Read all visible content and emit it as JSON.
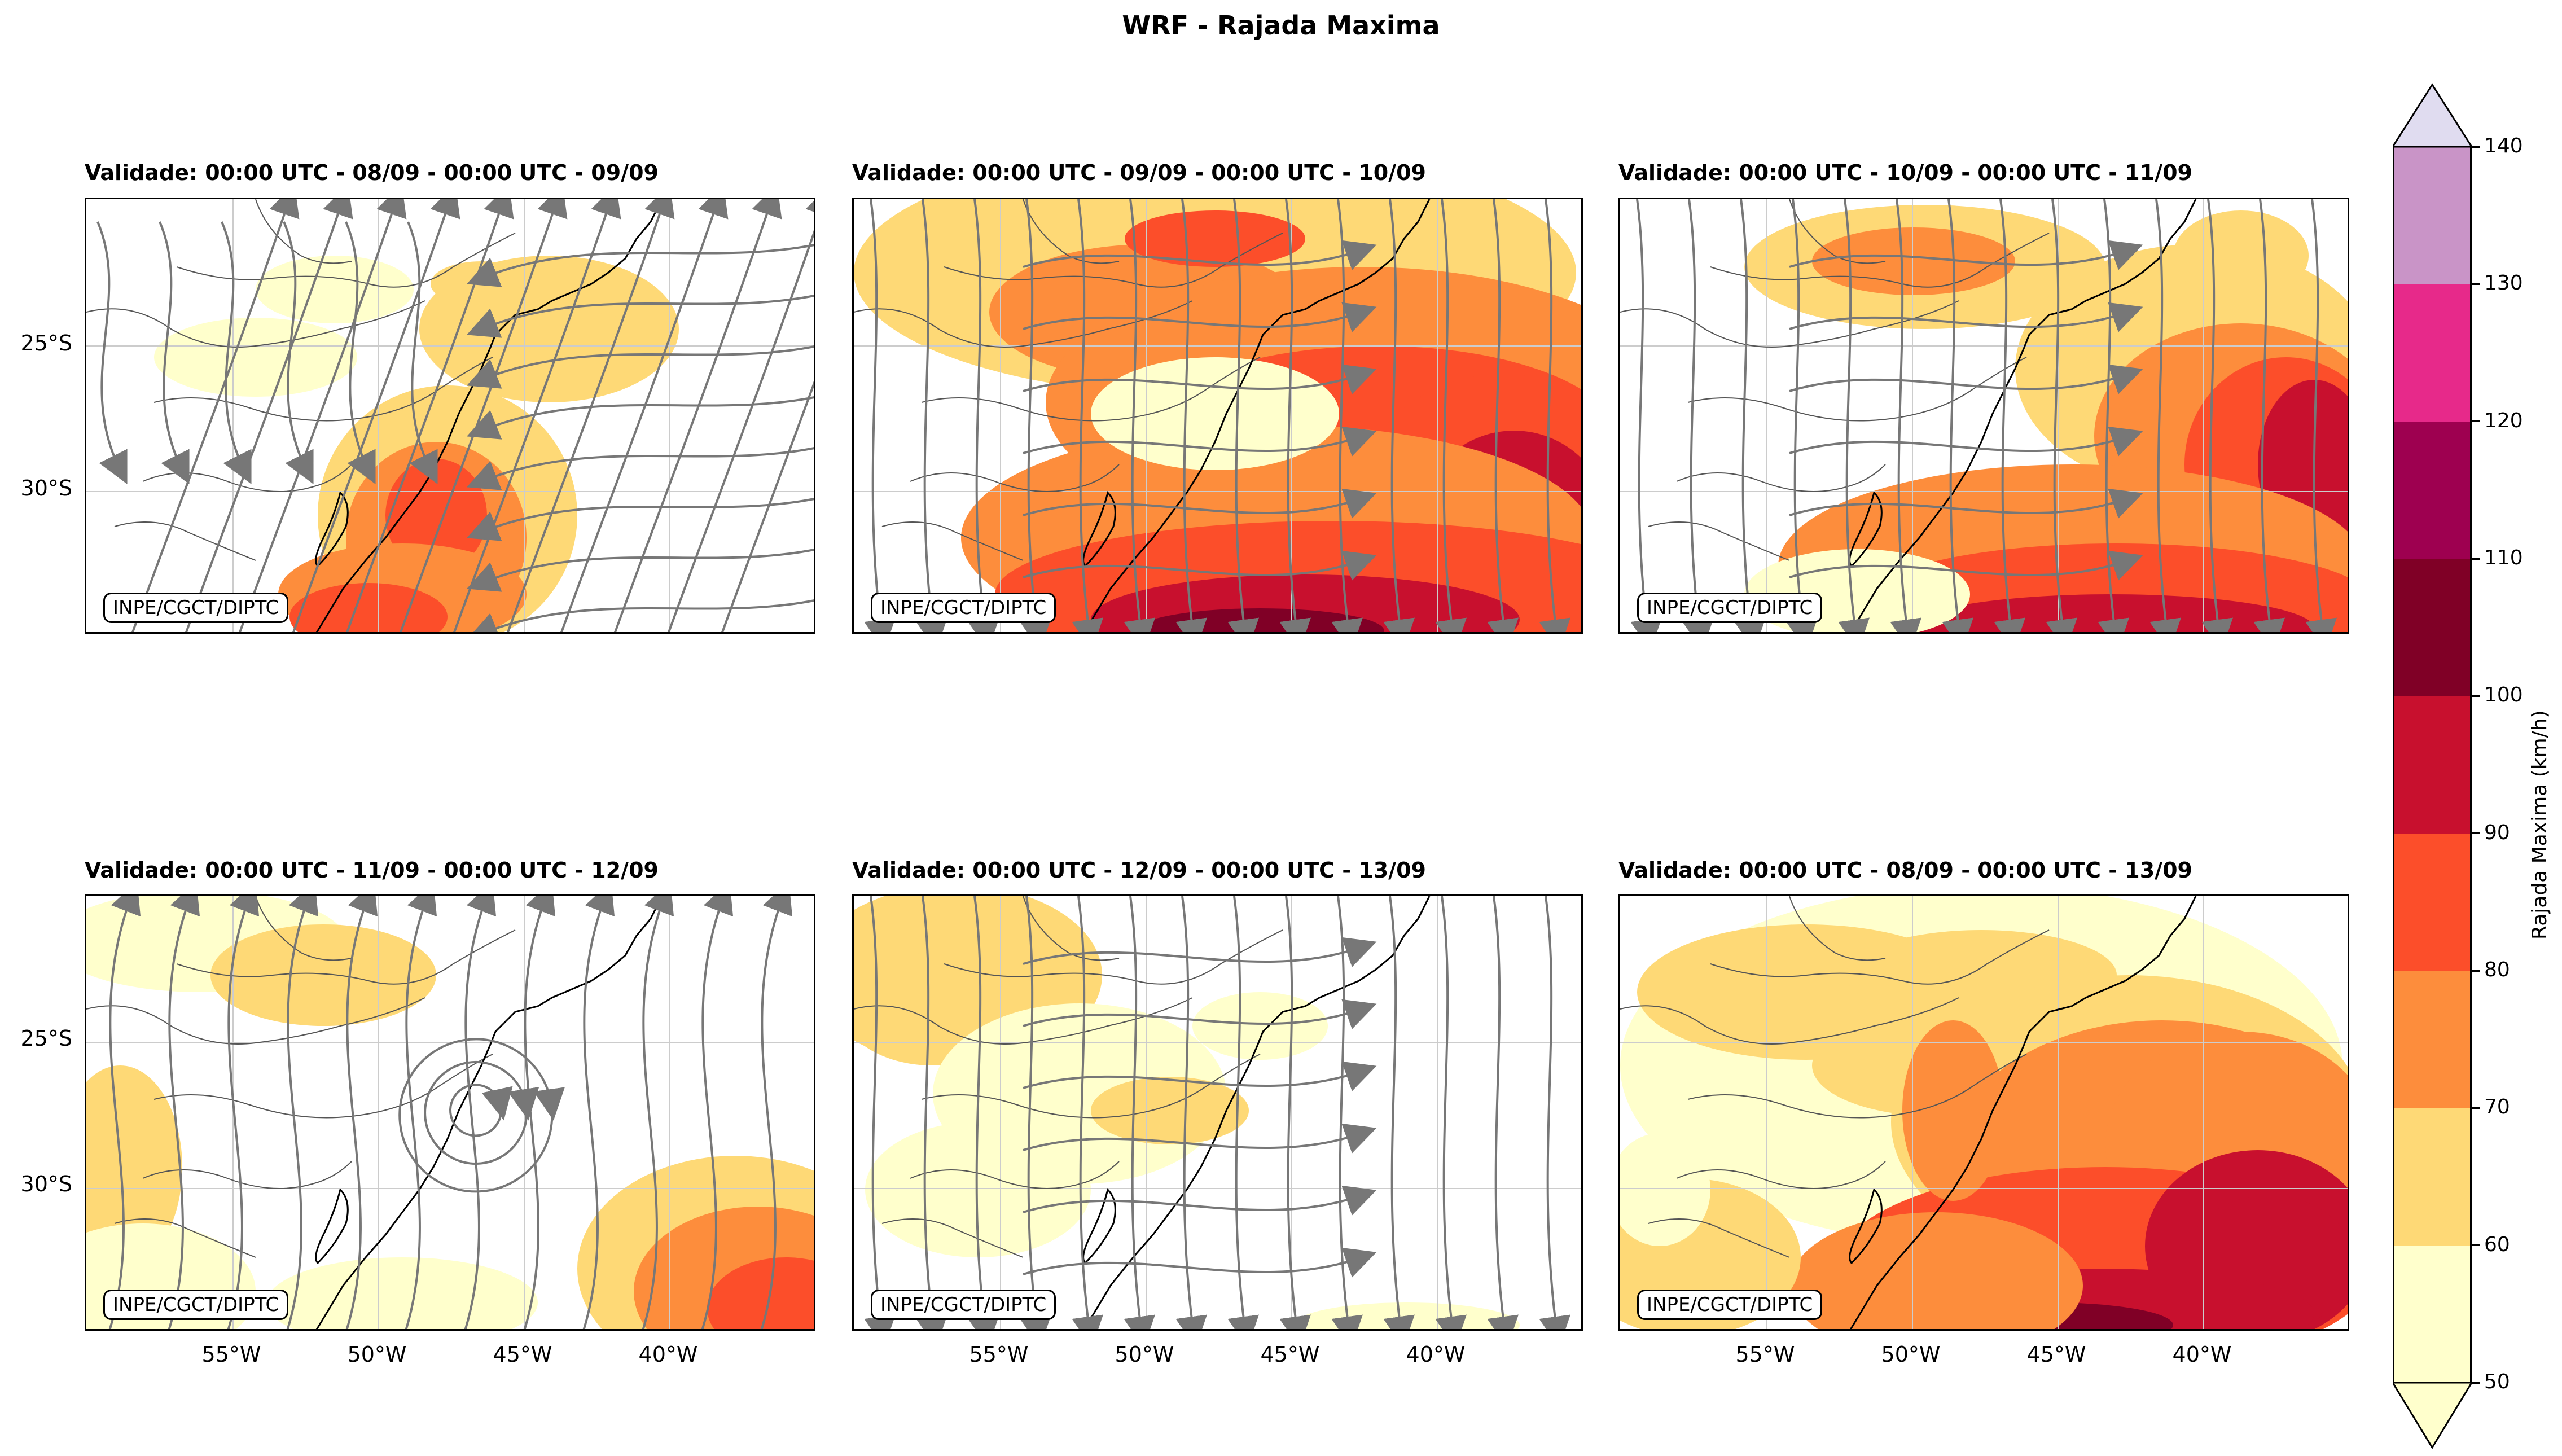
{
  "title": "WRF - Rajada Maxima",
  "credit": "INPE/CGCT/DIPTC",
  "panels": [
    {
      "title": "Validade: 00:00 UTC - 08/09 - 00:00 UTC - 09/09"
    },
    {
      "title": "Validade: 00:00 UTC - 09/09 - 00:00 UTC - 10/09"
    },
    {
      "title": "Validade: 00:00 UTC - 10/09 - 00:00 UTC - 11/09"
    },
    {
      "title": "Validade: 00:00 UTC - 11/09 - 00:00 UTC - 12/09"
    },
    {
      "title": "Validade: 00:00 UTC - 12/09 - 00:00 UTC - 13/09"
    },
    {
      "title": "Validade: 00:00 UTC - 08/09 - 00:00 UTC - 13/09"
    }
  ],
  "lat_labels": [
    "25°S",
    "30°S"
  ],
  "lon_labels": [
    "55°W",
    "50°W",
    "45°W",
    "40°W"
  ],
  "colorbar": {
    "label": "Rajada Maxima (km/h)",
    "ticks": [
      "50",
      "60",
      "70",
      "80",
      "90",
      "100",
      "110",
      "120",
      "130",
      "140"
    ],
    "colors": [
      "#ffffcc",
      "#fed976",
      "#fd8d3c",
      "#fc4e2a",
      "#c8102e",
      "#800026",
      "#9e0050",
      "#e7298a",
      "#c994c7",
      "#e0dcf0"
    ]
  },
  "colors": {
    "streamline": "#777777",
    "grid": "#cccccc",
    "coast": "#000000"
  }
}
